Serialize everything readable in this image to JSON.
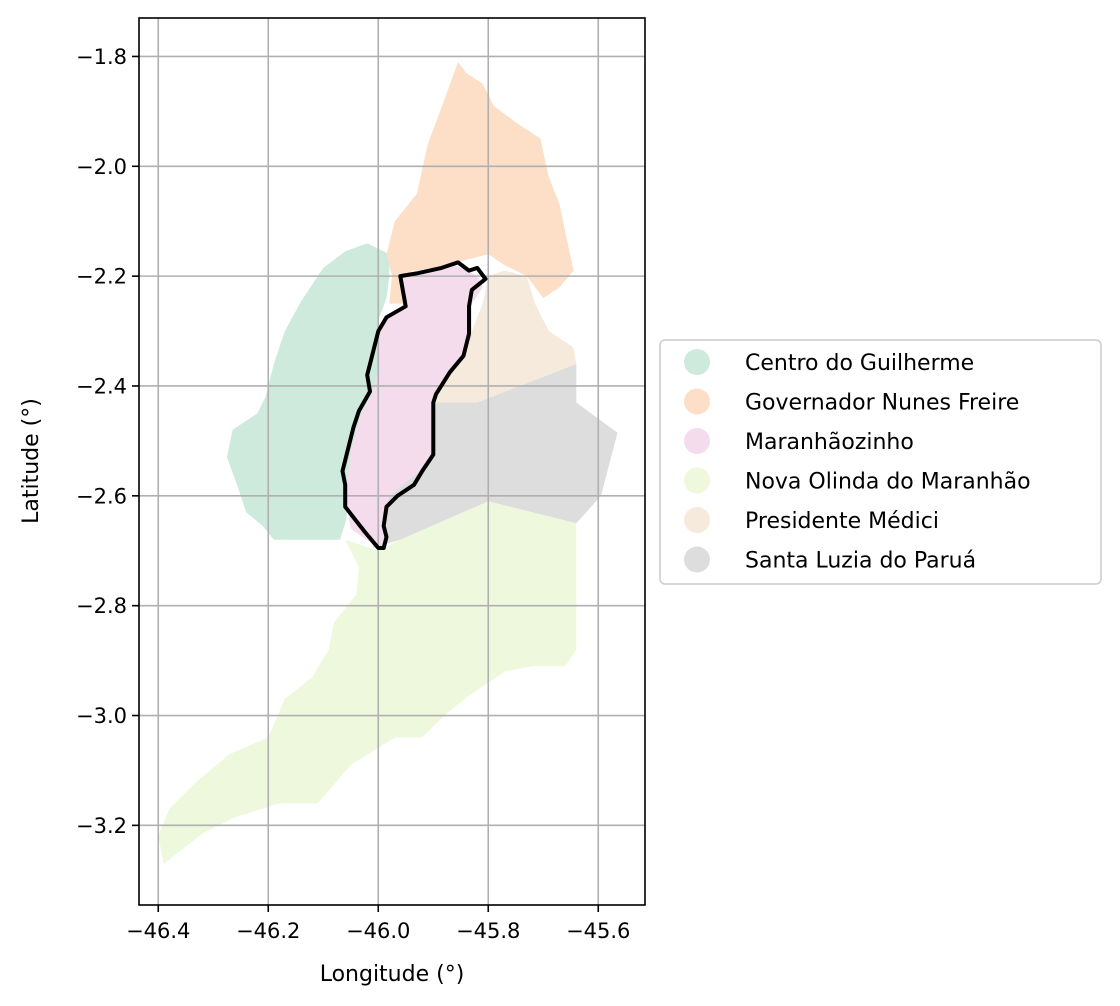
{
  "chart_data": {
    "type": "map",
    "xlabel": "Longitude (°)",
    "ylabel": "Latitude (°)",
    "xlim": [
      -46.435,
      -45.515
    ],
    "ylim": [
      -3.345,
      -1.73
    ],
    "grid": true,
    "legend_placement": "right",
    "x_ticks": [
      -46.4,
      -46.2,
      -46.0,
      -45.8,
      -45.6
    ],
    "x_tick_labels": [
      "−46.4",
      "−46.2",
      "−46.0",
      "−45.8",
      "−45.6"
    ],
    "y_ticks": [
      -1.8,
      -2.0,
      -2.2,
      -2.4,
      -2.6,
      -2.8,
      -3.0,
      -3.2
    ],
    "y_tick_labels": [
      "−1.8",
      "−2.0",
      "−2.2",
      "−2.4",
      "−2.6",
      "−2.8",
      "−3.0",
      "−3.2"
    ],
    "regions": [
      {
        "name": "Centro do Guilherme",
        "color": "#cdeadc",
        "polygon": [
          [
            -45.98,
            -2.16
          ],
          [
            -46.02,
            -2.14
          ],
          [
            -46.06,
            -2.155
          ],
          [
            -46.1,
            -2.185
          ],
          [
            -46.14,
            -2.245
          ],
          [
            -46.17,
            -2.3
          ],
          [
            -46.19,
            -2.36
          ],
          [
            -46.205,
            -2.42
          ],
          [
            -46.22,
            -2.45
          ],
          [
            -46.265,
            -2.48
          ],
          [
            -46.275,
            -2.53
          ],
          [
            -46.255,
            -2.585
          ],
          [
            -46.24,
            -2.63
          ],
          [
            -46.21,
            -2.655
          ],
          [
            -46.19,
            -2.68
          ],
          [
            -46.07,
            -2.68
          ],
          [
            -46.06,
            -2.65
          ],
          [
            -46.035,
            -2.52
          ],
          [
            -46.015,
            -2.46
          ],
          [
            -46.005,
            -2.41
          ],
          [
            -45.995,
            -2.37
          ],
          [
            -46.0,
            -2.28
          ],
          [
            -45.985,
            -2.24
          ],
          [
            -45.98,
            -2.2
          ]
        ]
      },
      {
        "name": "Governador Nunes Freire",
        "color": "#fddec7",
        "polygon": [
          [
            -45.855,
            -1.81
          ],
          [
            -45.84,
            -1.83
          ],
          [
            -45.81,
            -1.85
          ],
          [
            -45.79,
            -1.89
          ],
          [
            -45.75,
            -1.92
          ],
          [
            -45.705,
            -1.95
          ],
          [
            -45.69,
            -2.02
          ],
          [
            -45.67,
            -2.07
          ],
          [
            -45.66,
            -2.12
          ],
          [
            -45.645,
            -2.19
          ],
          [
            -45.67,
            -2.22
          ],
          [
            -45.7,
            -2.24
          ],
          [
            -45.73,
            -2.2
          ],
          [
            -45.77,
            -2.18
          ],
          [
            -45.8,
            -2.16
          ],
          [
            -45.84,
            -2.17
          ],
          [
            -45.9,
            -2.19
          ],
          [
            -45.94,
            -2.19
          ],
          [
            -45.955,
            -2.25
          ],
          [
            -45.98,
            -2.25
          ],
          [
            -45.975,
            -2.2
          ],
          [
            -45.985,
            -2.16
          ],
          [
            -45.97,
            -2.1
          ],
          [
            -45.93,
            -2.05
          ],
          [
            -45.91,
            -1.96
          ],
          [
            -45.88,
            -1.88
          ]
        ]
      },
      {
        "name": "Presidente Médici",
        "color": "#f5eadb",
        "polygon": [
          [
            -45.8,
            -2.2
          ],
          [
            -45.77,
            -2.19
          ],
          [
            -45.73,
            -2.2
          ],
          [
            -45.715,
            -2.25
          ],
          [
            -45.69,
            -2.3
          ],
          [
            -45.645,
            -2.33
          ],
          [
            -45.64,
            -2.36
          ],
          [
            -45.82,
            -2.43
          ],
          [
            -45.9,
            -2.43
          ],
          [
            -45.87,
            -2.37
          ],
          [
            -45.83,
            -2.3
          ],
          [
            -45.81,
            -2.25
          ]
        ]
      },
      {
        "name": "Santa Luzia do Paruá",
        "color": "#dddddd",
        "polygon": [
          [
            -45.9,
            -2.43
          ],
          [
            -45.82,
            -2.43
          ],
          [
            -45.64,
            -2.36
          ],
          [
            -45.64,
            -2.43
          ],
          [
            -45.565,
            -2.485
          ],
          [
            -45.595,
            -2.6
          ],
          [
            -45.64,
            -2.65
          ],
          [
            -45.8,
            -2.61
          ],
          [
            -45.96,
            -2.68
          ],
          [
            -46.01,
            -2.695
          ],
          [
            -45.985,
            -2.6
          ],
          [
            -45.93,
            -2.56
          ],
          [
            -45.9,
            -2.5
          ]
        ]
      },
      {
        "name": "Nova Olinda do Maranhão",
        "color": "#eef8dc",
        "polygon": [
          [
            -46.06,
            -2.68
          ],
          [
            -46.0,
            -2.7
          ],
          [
            -45.96,
            -2.68
          ],
          [
            -45.8,
            -2.61
          ],
          [
            -45.64,
            -2.65
          ],
          [
            -45.64,
            -2.88
          ],
          [
            -45.66,
            -2.91
          ],
          [
            -45.72,
            -2.91
          ],
          [
            -45.77,
            -2.92
          ],
          [
            -45.83,
            -2.96
          ],
          [
            -45.88,
            -3.0
          ],
          [
            -45.92,
            -3.04
          ],
          [
            -45.97,
            -3.04
          ],
          [
            -46.05,
            -3.09
          ],
          [
            -46.11,
            -3.16
          ],
          [
            -46.18,
            -3.16
          ],
          [
            -46.26,
            -3.185
          ],
          [
            -46.32,
            -3.215
          ],
          [
            -46.39,
            -3.27
          ],
          [
            -46.4,
            -3.22
          ],
          [
            -46.38,
            -3.17
          ],
          [
            -46.33,
            -3.12
          ],
          [
            -46.27,
            -3.07
          ],
          [
            -46.2,
            -3.04
          ],
          [
            -46.17,
            -2.97
          ],
          [
            -46.12,
            -2.93
          ],
          [
            -46.09,
            -2.88
          ],
          [
            -46.08,
            -2.83
          ],
          [
            -46.04,
            -2.78
          ],
          [
            -46.035,
            -2.73
          ]
        ]
      },
      {
        "name": "Maranhãozinho",
        "color": "#f4dced",
        "polygon": [
          [
            -45.98,
            -2.27
          ],
          [
            -45.955,
            -2.26
          ],
          [
            -45.96,
            -2.2
          ],
          [
            -45.93,
            -2.2
          ],
          [
            -45.86,
            -2.18
          ],
          [
            -45.82,
            -2.2
          ],
          [
            -45.81,
            -2.22
          ],
          [
            -45.83,
            -2.25
          ],
          [
            -45.83,
            -2.31
          ],
          [
            -45.85,
            -2.35
          ],
          [
            -45.89,
            -2.4
          ],
          [
            -45.9,
            -2.43
          ],
          [
            -45.9,
            -2.52
          ],
          [
            -45.93,
            -2.56
          ],
          [
            -45.98,
            -2.6
          ],
          [
            -45.985,
            -2.65
          ],
          [
            -45.985,
            -2.69
          ],
          [
            -46.0,
            -2.695
          ],
          [
            -46.05,
            -2.66
          ],
          [
            -46.06,
            -2.6
          ],
          [
            -46.05,
            -2.52
          ],
          [
            -46.035,
            -2.46
          ],
          [
            -46.01,
            -2.41
          ],
          [
            -46.0,
            -2.37
          ],
          [
            -46.0,
            -2.3
          ]
        ]
      }
    ],
    "highlight": {
      "name": "Maranhãozinho",
      "color": "#000000",
      "polygon": [
        [
          -45.985,
          -2.275
        ],
        [
          -45.95,
          -2.255
        ],
        [
          -45.96,
          -2.2
        ],
        [
          -45.93,
          -2.195
        ],
        [
          -45.885,
          -2.185
        ],
        [
          -45.855,
          -2.175
        ],
        [
          -45.835,
          -2.19
        ],
        [
          -45.82,
          -2.185
        ],
        [
          -45.805,
          -2.205
        ],
        [
          -45.83,
          -2.225
        ],
        [
          -45.835,
          -2.255
        ],
        [
          -45.835,
          -2.305
        ],
        [
          -45.845,
          -2.345
        ],
        [
          -45.87,
          -2.375
        ],
        [
          -45.895,
          -2.415
        ],
        [
          -45.9,
          -2.43
        ],
        [
          -45.9,
          -2.48
        ],
        [
          -45.9,
          -2.525
        ],
        [
          -45.92,
          -2.555
        ],
        [
          -45.935,
          -2.58
        ],
        [
          -45.965,
          -2.6
        ],
        [
          -45.985,
          -2.62
        ],
        [
          -45.99,
          -2.655
        ],
        [
          -45.985,
          -2.675
        ],
        [
          -45.99,
          -2.695
        ],
        [
          -46.0,
          -2.695
        ],
        [
          -46.025,
          -2.665
        ],
        [
          -46.06,
          -2.62
        ],
        [
          -46.06,
          -2.58
        ],
        [
          -46.065,
          -2.555
        ],
        [
          -46.055,
          -2.515
        ],
        [
          -46.045,
          -2.475
        ],
        [
          -46.035,
          -2.445
        ],
        [
          -46.015,
          -2.41
        ],
        [
          -46.02,
          -2.38
        ],
        [
          -46.01,
          -2.34
        ],
        [
          -46.0,
          -2.3
        ]
      ]
    },
    "legend": [
      {
        "label": "Centro do Guilherme",
        "color": "#cdeadc"
      },
      {
        "label": "Governador Nunes Freire",
        "color": "#fddec7"
      },
      {
        "label": "Maranhãozinho",
        "color": "#f4dced"
      },
      {
        "label": "Nova Olinda do Maranhão",
        "color": "#eef8dc"
      },
      {
        "label": "Presidente Médici",
        "color": "#f5eadb"
      },
      {
        "label": "Santa Luzia do Paruá",
        "color": "#dddddd"
      }
    ]
  }
}
